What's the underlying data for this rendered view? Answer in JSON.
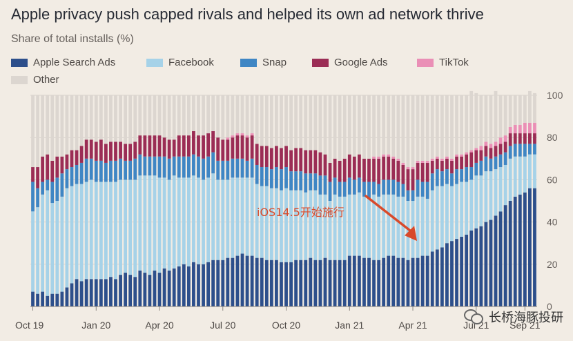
{
  "header": {
    "title": "Apple privacy push capped rivals and helped its own ad network thrive",
    "subtitle": "Share of total installs (%)"
  },
  "legend": [
    {
      "label": "Apple Search Ads",
      "color": "#2d4f8b"
    },
    {
      "label": "Facebook",
      "color": "#a6d2e8"
    },
    {
      "label": "Snap",
      "color": "#3f86c4"
    },
    {
      "label": "Google Ads",
      "color": "#9b2d55"
    },
    {
      "label": "TikTok",
      "color": "#ea8fb6"
    },
    {
      "label": "Other",
      "color": "#dcd6d0"
    }
  ],
  "annotation": {
    "text": "iOS14.5开始施行",
    "color": "#d84a2b"
  },
  "watermark": {
    "text": "长桥海豚投研",
    "icon": "wechat-icon"
  },
  "chart_data": {
    "type": "bar",
    "stacked": true,
    "title": "Apple privacy push capped rivals and helped its own ad network thrive",
    "ylabel": "Share of total installs (%)",
    "ylim": [
      0,
      100
    ],
    "yticks": [
      0,
      20,
      40,
      60,
      80,
      100
    ],
    "xtick_labels": [
      "Oct 19",
      "Jan 20",
      "Apr 20",
      "Jul 20",
      "Oct 20",
      "Jan 21",
      "Apr 21",
      "Jul 21",
      "Sep 21"
    ],
    "xtick_bar_index": [
      0,
      13,
      26,
      39,
      52,
      65,
      78,
      91,
      101
    ],
    "series": [
      {
        "name": "Apple Search Ads",
        "color": "#2d4f8b",
        "values": [
          7,
          6,
          7,
          5,
          6,
          6,
          7,
          9,
          11,
          13,
          12,
          13,
          13,
          13,
          13,
          13,
          14,
          13,
          15,
          16,
          15,
          14,
          17,
          16,
          15,
          17,
          16,
          18,
          17,
          18,
          19,
          20,
          19,
          21,
          20,
          20,
          21,
          22,
          22,
          22,
          23,
          23,
          24,
          25,
          24,
          24,
          23,
          23,
          22,
          22,
          22,
          21,
          21,
          21,
          22,
          22,
          22,
          23,
          22,
          22,
          23,
          22,
          22,
          22,
          22,
          24,
          24,
          24,
          23,
          23,
          22,
          22,
          23,
          24,
          24,
          23,
          23,
          22,
          23,
          23,
          24,
          24,
          26,
          27,
          28,
          30,
          31,
          32,
          33,
          34,
          36,
          37,
          38,
          40,
          41,
          43,
          45,
          48,
          50,
          52,
          53,
          54,
          56,
          56
        ]
      },
      {
        "name": "Facebook",
        "color": "#a6d2e8",
        "values": [
          38,
          41,
          46,
          50,
          43,
          44,
          45,
          47,
          46,
          45,
          46,
          46,
          47,
          46,
          46,
          46,
          45,
          46,
          45,
          44,
          45,
          46,
          45,
          46,
          47,
          45,
          45,
          43,
          43,
          44,
          42,
          41,
          42,
          41,
          41,
          40,
          40,
          41,
          38,
          38,
          37,
          38,
          37,
          36,
          37,
          37,
          35,
          34,
          35,
          34,
          34,
          34,
          35,
          34,
          33,
          33,
          32,
          32,
          33,
          31,
          30,
          28,
          31,
          30,
          30,
          29,
          29,
          30,
          29,
          28,
          31,
          30,
          30,
          29,
          29,
          29,
          29,
          28,
          27,
          29,
          28,
          27,
          29,
          30,
          29,
          28,
          26,
          26,
          26,
          25,
          24,
          25,
          24,
          24,
          23,
          22,
          21,
          19,
          20,
          19,
          18,
          17,
          16,
          16
        ]
      },
      {
        "name": "Snap",
        "color": "#3f86c4",
        "values": [
          14,
          9,
          6,
          5,
          10,
          11,
          11,
          9,
          9,
          9,
          10,
          11,
          10,
          10,
          10,
          9,
          10,
          10,
          10,
          9,
          9,
          10,
          10,
          9,
          9,
          9,
          10,
          10,
          10,
          9,
          10,
          10,
          10,
          10,
          10,
          10,
          10,
          10,
          9,
          9,
          9,
          9,
          9,
          9,
          8,
          9,
          9,
          9,
          9,
          9,
          10,
          10,
          10,
          9,
          9,
          9,
          9,
          8,
          8,
          9,
          9,
          9,
          8,
          7,
          7,
          8,
          7,
          7,
          7,
          8,
          6,
          6,
          7,
          7,
          7,
          7,
          6,
          5,
          5,
          8,
          7,
          8,
          8,
          8,
          7,
          7,
          6,
          7,
          6,
          7,
          6,
          6,
          7,
          7,
          6,
          6,
          6,
          6,
          6,
          6,
          6,
          6,
          5,
          5
        ]
      },
      {
        "name": "Google Ads",
        "color": "#9b2d55",
        "values": [
          7,
          10,
          12,
          12,
          10,
          10,
          8,
          7,
          8,
          7,
          8,
          9,
          9,
          9,
          10,
          9,
          9,
          9,
          8,
          8,
          8,
          8,
          9,
          10,
          10,
          10,
          10,
          9,
          9,
          8,
          10,
          10,
          10,
          11,
          10,
          11,
          11,
          10,
          11,
          10,
          10,
          10,
          11,
          11,
          11,
          11,
          10,
          10,
          10,
          10,
          10,
          10,
          10,
          10,
          11,
          11,
          11,
          11,
          11,
          11,
          10,
          9,
          9,
          10,
          11,
          11,
          11,
          11,
          11,
          11,
          11,
          12,
          11,
          11,
          10,
          10,
          9,
          10,
          10,
          8,
          9,
          9,
          6,
          5,
          5,
          5,
          6,
          6,
          6,
          6,
          7,
          6,
          5,
          5,
          5,
          5,
          5,
          5,
          6,
          5,
          5,
          5,
          5,
          5
        ]
      },
      {
        "name": "TikTok",
        "color": "#ea8fb6",
        "values": [
          0,
          0,
          0,
          0,
          0,
          0,
          0,
          0,
          0,
          0,
          0,
          0,
          0,
          0,
          0,
          0,
          0,
          0,
          0,
          0,
          0,
          0,
          0,
          0,
          0,
          0,
          0,
          0,
          0,
          0,
          0,
          0,
          0,
          0,
          0,
          0,
          0,
          0,
          0,
          0,
          1,
          1,
          1,
          1,
          1,
          1,
          0,
          0,
          0,
          0,
          0,
          0,
          0,
          0,
          0,
          0,
          0,
          0,
          0,
          0,
          0,
          0,
          0,
          0,
          0,
          0,
          0,
          0,
          0,
          0,
          1,
          1,
          1,
          1,
          1,
          1,
          1,
          1,
          1,
          1,
          1,
          1,
          1,
          1,
          1,
          1,
          1,
          1,
          1,
          1,
          1,
          1,
          2,
          2,
          2,
          2,
          3,
          3,
          3,
          4,
          4,
          5,
          5,
          5
        ]
      },
      {
        "name": "Other",
        "color": "#dcd6d0",
        "values": [
          34,
          34,
          29,
          28,
          31,
          29,
          29,
          28,
          26,
          26,
          24,
          21,
          21,
          22,
          21,
          23,
          22,
          22,
          22,
          23,
          23,
          22,
          19,
          19,
          19,
          19,
          19,
          20,
          21,
          21,
          19,
          19,
          19,
          17,
          19,
          19,
          18,
          17,
          20,
          21,
          20,
          19,
          18,
          18,
          19,
          18,
          23,
          24,
          24,
          25,
          24,
          25,
          24,
          26,
          25,
          25,
          26,
          26,
          26,
          27,
          28,
          32,
          30,
          31,
          30,
          28,
          29,
          28,
          30,
          30,
          29,
          29,
          28,
          28,
          29,
          30,
          32,
          34,
          34,
          31,
          31,
          31,
          30,
          29,
          30,
          29,
          30,
          28,
          28,
          27,
          28,
          26,
          24,
          22,
          23,
          24,
          20,
          19,
          15,
          14,
          14,
          13,
          15,
          14
        ]
      }
    ]
  }
}
